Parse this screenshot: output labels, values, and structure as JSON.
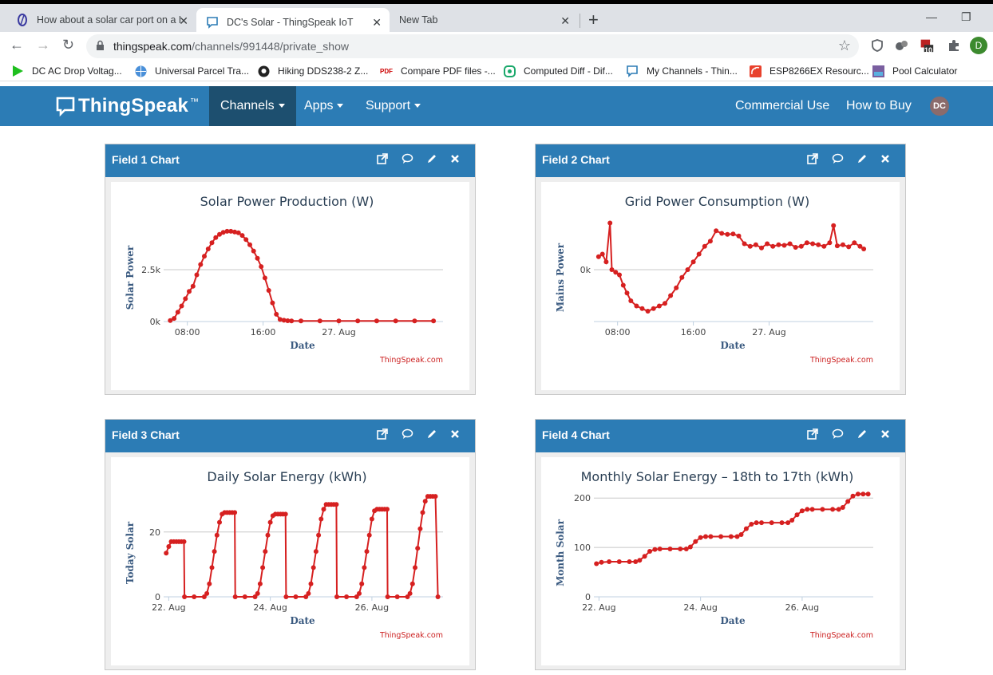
{
  "browser": {
    "tabs": [
      {
        "title": "How about a solar car port on a R",
        "icon": "forum-icon"
      },
      {
        "title": "DC's Solar - ThingSpeak IoT",
        "icon": "thingspeak-icon"
      },
      {
        "title": "New Tab",
        "icon": ""
      }
    ],
    "url_host": "thingspeak.com",
    "url_path": "/channels/991448/private_show",
    "bookmarks": [
      {
        "label": "DC AC Drop Voltag...",
        "icon": "play-icon"
      },
      {
        "label": "Universal Parcel Tra...",
        "icon": "globe-icon"
      },
      {
        "label": "Hiking DDS238-2 Z...",
        "icon": "github-icon"
      },
      {
        "label": "Compare PDF files -...",
        "icon": "pdf-icon"
      },
      {
        "label": "Computed Diff - Dif...",
        "icon": "diff-icon"
      },
      {
        "label": "My Channels - Thin...",
        "icon": "thingspeak-icon"
      },
      {
        "label": "ESP8266EX Resourc...",
        "icon": "espressif-icon"
      },
      {
        "label": "Pool Calculator",
        "icon": "pool-icon"
      }
    ],
    "extension_badge": "10",
    "profile_initial": "D"
  },
  "nav": {
    "logo": "ThingSpeak",
    "logo_tm": "™",
    "channels": "Channels",
    "apps": "Apps",
    "support": "Support",
    "commercial": "Commercial Use",
    "howtobuy": "How to Buy",
    "avatar": "DC"
  },
  "colors": {
    "brand": "#2c7cb5",
    "brand_dark": "#1d4f6f",
    "series": "#d62020"
  },
  "panels": [
    {
      "title": "Field 1 Chart"
    },
    {
      "title": "Field 2 Chart"
    },
    {
      "title": "Field 3 Chart"
    },
    {
      "title": "Field 4 Chart"
    }
  ],
  "chart_data": [
    {
      "type": "line",
      "title": "Solar Power Production (W)",
      "ylabel": "Solar Power",
      "xlabel": "Date",
      "credit": "ThingSpeak.com",
      "x_ticks": [
        "08:00",
        "16:00",
        "27. Aug"
      ],
      "y_ticks": [
        "0k",
        "2.5k"
      ],
      "x_unit": "hours since 26 Aug 00:00",
      "xlim": [
        5.5,
        35
      ],
      "ylim": [
        0,
        5000
      ],
      "x": [
        6.2,
        6.6,
        7.0,
        7.4,
        7.8,
        8.2,
        8.6,
        9.0,
        9.4,
        9.8,
        10.2,
        10.6,
        11.0,
        11.4,
        11.8,
        12.2,
        12.6,
        13.0,
        13.4,
        13.8,
        14.2,
        14.6,
        15.0,
        15.4,
        15.8,
        16.2,
        16.6,
        17.0,
        17.4,
        17.8,
        18.2,
        18.6,
        19.0,
        20,
        22,
        24,
        26,
        28,
        30,
        32,
        34
      ],
      "y": [
        50,
        150,
        450,
        750,
        1100,
        1450,
        1700,
        2250,
        2750,
        3150,
        3500,
        3800,
        4050,
        4200,
        4300,
        4350,
        4350,
        4320,
        4280,
        4150,
        3950,
        3700,
        3400,
        3050,
        2650,
        2100,
        1500,
        900,
        350,
        100,
        60,
        40,
        30,
        30,
        30,
        30,
        30,
        30,
        30,
        30,
        30
      ]
    },
    {
      "type": "line",
      "title": "Grid Power Consumption (W)",
      "ylabel": "Mains Power",
      "xlabel": "Date",
      "credit": "ThingSpeak.com",
      "x_ticks": [
        "08:00",
        "16:00",
        "27. Aug"
      ],
      "y_ticks": [
        "0k"
      ],
      "x_unit": "hours since 26 Aug 00:00",
      "xlim": [
        5.5,
        35
      ],
      "ylim": [
        -1000,
        1000
      ],
      "x": [
        6.0,
        6.4,
        6.8,
        7.2,
        7.4,
        7.8,
        8.2,
        8.6,
        9.0,
        9.4,
        10.0,
        10.6,
        11.2,
        11.8,
        12.4,
        13.0,
        13.6,
        14.2,
        14.8,
        15.4,
        16.0,
        16.6,
        17.2,
        17.8,
        18.4,
        19.0,
        19.6,
        20.2,
        20.8,
        21.4,
        22.0,
        22.6,
        23.2,
        23.8,
        24.4,
        25.0,
        25.6,
        26.2,
        26.8,
        27.4,
        28.0,
        28.6,
        29.2,
        29.8,
        30.4,
        30.8,
        31.2,
        31.8,
        32.4,
        33.0,
        33.6,
        34.0
      ],
      "y": [
        250,
        300,
        150,
        900,
        0,
        -50,
        -100,
        -300,
        -450,
        -600,
        -700,
        -750,
        -800,
        -750,
        -700,
        -650,
        -500,
        -350,
        -150,
        0,
        150,
        300,
        450,
        550,
        750,
        700,
        680,
        690,
        650,
        500,
        450,
        480,
        420,
        500,
        450,
        480,
        470,
        500,
        430,
        450,
        520,
        500,
        480,
        450,
        520,
        850,
        460,
        480,
        440,
        520,
        450,
        400
      ]
    },
    {
      "type": "line",
      "title": "Daily Solar Energy (kWh)",
      "ylabel": "Today Solar",
      "xlabel": "Date",
      "credit": "ThingSpeak.com",
      "x_ticks": [
        "22. Aug",
        "24. Aug",
        "26. Aug"
      ],
      "y_ticks": [
        "0",
        "20"
      ],
      "x_unit": "days since 21 Aug 00:00",
      "xlim": [
        0.9,
        6.4
      ],
      "ylim": [
        0,
        32
      ],
      "x": [
        0.95,
        1.0,
        1.05,
        1.1,
        1.15,
        1.2,
        1.25,
        1.3,
        1.31,
        1.5,
        1.7,
        1.75,
        1.8,
        1.85,
        1.9,
        1.95,
        2.0,
        2.05,
        2.1,
        2.15,
        2.2,
        2.25,
        2.3,
        2.31,
        2.5,
        2.7,
        2.75,
        2.8,
        2.85,
        2.9,
        2.95,
        3.0,
        3.05,
        3.1,
        3.15,
        3.2,
        3.25,
        3.3,
        3.31,
        3.5,
        3.7,
        3.75,
        3.8,
        3.85,
        3.9,
        3.95,
        4.0,
        4.05,
        4.1,
        4.15,
        4.2,
        4.25,
        4.3,
        4.31,
        4.5,
        4.7,
        4.75,
        4.8,
        4.85,
        4.9,
        4.95,
        5.0,
        5.05,
        5.1,
        5.15,
        5.2,
        5.25,
        5.3,
        5.31,
        5.5,
        5.7,
        5.75,
        5.8,
        5.85,
        5.9,
        5.95,
        6.0,
        6.05,
        6.1,
        6.15,
        6.2,
        6.25,
        6.3
      ],
      "y": [
        13.5,
        15.5,
        17,
        17,
        17,
        17,
        17,
        17,
        0,
        0,
        0,
        1,
        4,
        9,
        14,
        19,
        23,
        25.5,
        26,
        26,
        26,
        26,
        26,
        0,
        0,
        0,
        1,
        4,
        9,
        14,
        19,
        23,
        25,
        25.5,
        25.5,
        25.5,
        25.5,
        25.5,
        0,
        0,
        0,
        1,
        4,
        9,
        14,
        19,
        24,
        27,
        28.5,
        28.5,
        28.5,
        28.5,
        28.5,
        0,
        0,
        0,
        1,
        4,
        9,
        14,
        19,
        24,
        26.5,
        27,
        27,
        27,
        27,
        27,
        0,
        0,
        0,
        1,
        4,
        9,
        15,
        21,
        26,
        29.5,
        31,
        31,
        31,
        31,
        0
      ]
    },
    {
      "type": "line",
      "title": "Monthly Solar Energy – 18th to 17th (kWh)",
      "ylabel": "Month Solar",
      "xlabel": "Date",
      "credit": "ThingSpeak.com",
      "x_ticks": [
        "22. Aug",
        "24. Aug",
        "26. Aug"
      ],
      "y_ticks": [
        "0",
        "100",
        "200"
      ],
      "x_unit": "days since 21 Aug 00:00",
      "xlim": [
        0.9,
        6.4
      ],
      "ylim": [
        0,
        210
      ],
      "x": [
        0.95,
        1.05,
        1.2,
        1.4,
        1.6,
        1.72,
        1.8,
        1.9,
        2.0,
        2.1,
        2.2,
        2.4,
        2.6,
        2.72,
        2.8,
        2.9,
        3.0,
        3.1,
        3.2,
        3.4,
        3.6,
        3.72,
        3.8,
        3.9,
        4.0,
        4.1,
        4.2,
        4.4,
        4.6,
        4.72,
        4.8,
        4.9,
        5.0,
        5.1,
        5.2,
        5.4,
        5.6,
        5.72,
        5.8,
        5.9,
        6.0,
        6.1,
        6.2,
        6.3
      ],
      "y": [
        67,
        70,
        71,
        71,
        71,
        71,
        74,
        82,
        92,
        96,
        97,
        97,
        97,
        97,
        101,
        112,
        120,
        122,
        122,
        122,
        122,
        122,
        126,
        138,
        147,
        150,
        150,
        150,
        150,
        150,
        155,
        166,
        174,
        177,
        177,
        177,
        177,
        177,
        181,
        193,
        204,
        208,
        208,
        208
      ]
    }
  ]
}
